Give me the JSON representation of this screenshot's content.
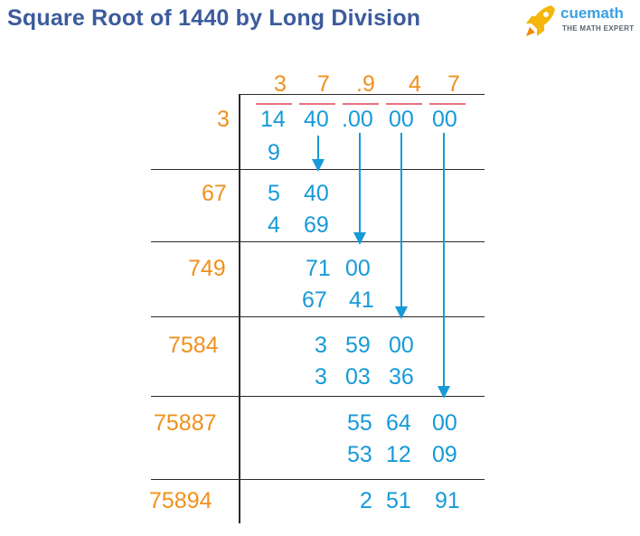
{
  "title": "Square Root of 1440 by Long Division",
  "logo": {
    "name": "cuemath",
    "tagline": "THE MATH EXPERT"
  },
  "quotient": [
    "3",
    "7",
    ".9",
    "4",
    "7"
  ],
  "dividend": {
    "g1": "14",
    "g2": "40",
    "g3": ".00",
    "g4": "00",
    "g5": "00"
  },
  "divisors": [
    "3",
    "67",
    "749",
    "7584",
    "75887",
    "75894"
  ],
  "steps": {
    "s1_sub": "9",
    "s2_rem_a": "5",
    "s2_rem_b": "40",
    "s2_sub_a": "4",
    "s2_sub_b": "69",
    "s3_rem_a": "71",
    "s3_rem_b": "00",
    "s3_sub_a": "67",
    "s3_sub_b": "41",
    "s4_rem_a": "3",
    "s4_rem_b": "59",
    "s4_rem_c": "00",
    "s4_sub_a": "3",
    "s4_sub_b": "03",
    "s4_sub_c": "36",
    "s5_rem_a": "55",
    "s5_rem_b": "64",
    "s5_rem_c": "00",
    "s5_sub_a": "53",
    "s5_sub_b": "12",
    "s5_sub_c": "09",
    "s6_rem_a": "2",
    "s6_rem_b": "51",
    "s6_rem_c": "91"
  },
  "colors": {
    "title": "#3c5b9c",
    "divisor": "#f0901c",
    "digits": "#169ad8",
    "bar": "#e8707e",
    "line": "#2a2a2a"
  }
}
